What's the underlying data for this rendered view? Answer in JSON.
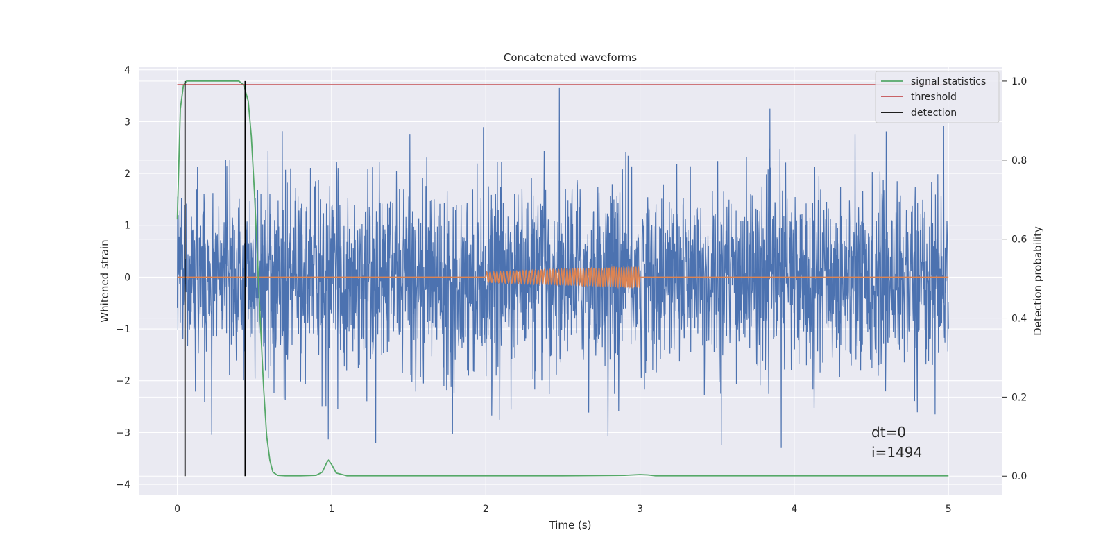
{
  "chart_data": {
    "type": "line",
    "title": "Concatenated waveforms",
    "xlabel": "Time (s)",
    "ylabel": "Whitened strain",
    "y2label": "Detection probability",
    "xlim": [
      -0.25,
      5.35
    ],
    "ylim": [
      -4.2,
      4.05
    ],
    "y2lim": [
      -0.047,
      1.035
    ],
    "xticks": [
      0,
      1,
      2,
      3,
      4,
      5
    ],
    "yticks": [
      -4,
      -3,
      -2,
      -1,
      0,
      1,
      2,
      3,
      4
    ],
    "y2ticks": [
      0.0,
      0.2,
      0.4,
      0.6,
      0.8,
      1.0
    ],
    "grid": true,
    "legend_position": "top-right",
    "colors": {
      "whitened_strain": "#4c72b0",
      "injected_signal": "#dd8452",
      "signal_statistics": "#55a868",
      "threshold": "#c44e52",
      "detection": "#000000",
      "axes_background": "#eaeaf2",
      "grid": "#ffffff"
    },
    "strain_envelope": {
      "description_note": "",
      "x_range": [
        0,
        5
      ],
      "typical_amplitude": 1.3,
      "peak_max": 3.65,
      "peak_min": -3.3
    },
    "injected_signal": {
      "x_range": [
        2.0,
        3.0
      ],
      "amplitude_start": 0.1,
      "amplitude_end": 0.2,
      "cycles": 55
    },
    "series": [
      {
        "name": "signal statistics",
        "axis": "right",
        "x": [
          0.0,
          0.02,
          0.04,
          0.06,
          0.1,
          0.2,
          0.3,
          0.4,
          0.43,
          0.46,
          0.48,
          0.5,
          0.52,
          0.54,
          0.56,
          0.58,
          0.6,
          0.62,
          0.65,
          0.7,
          0.8,
          0.9,
          0.94,
          0.97,
          0.98,
          1.0,
          1.03,
          1.1,
          1.2,
          1.5,
          2.0,
          2.5,
          2.9,
          3.0,
          3.05,
          3.1,
          3.5,
          4.0,
          4.5,
          5.0
        ],
        "y": [
          0.65,
          0.93,
          0.99,
          1.0,
          1.0,
          1.0,
          1.0,
          1.0,
          0.99,
          0.95,
          0.86,
          0.72,
          0.55,
          0.38,
          0.22,
          0.1,
          0.04,
          0.01,
          0.002,
          0.001,
          0.001,
          0.002,
          0.01,
          0.035,
          0.04,
          0.03,
          0.008,
          0.001,
          0.001,
          0.001,
          0.001,
          0.001,
          0.002,
          0.004,
          0.003,
          0.001,
          0.001,
          0.001,
          0.001,
          0.001
        ]
      },
      {
        "name": "threshold",
        "axis": "right",
        "x": [
          0,
          5
        ],
        "y": [
          0.991,
          0.991
        ]
      },
      {
        "name": "detection",
        "axis": "right",
        "vlines": [
          0.05,
          0.44
        ],
        "y": [
          0,
          1.0
        ]
      }
    ],
    "annotation": {
      "x": 4.5,
      "lines": [
        "dt=0",
        "i=1494"
      ]
    }
  }
}
